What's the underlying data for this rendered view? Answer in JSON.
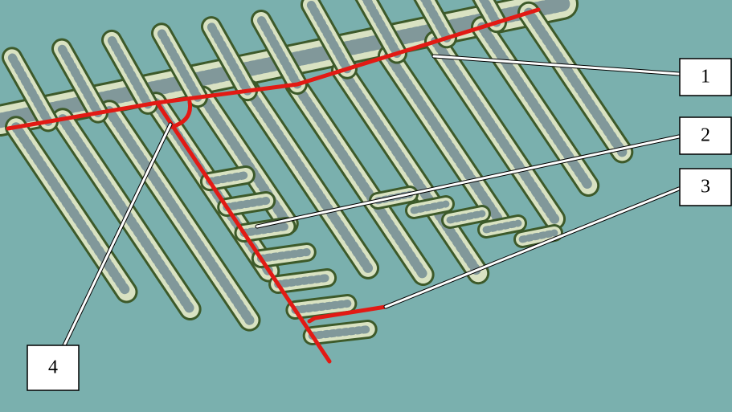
{
  "labels": [
    "1",
    "2",
    "3",
    "4"
  ]
}
